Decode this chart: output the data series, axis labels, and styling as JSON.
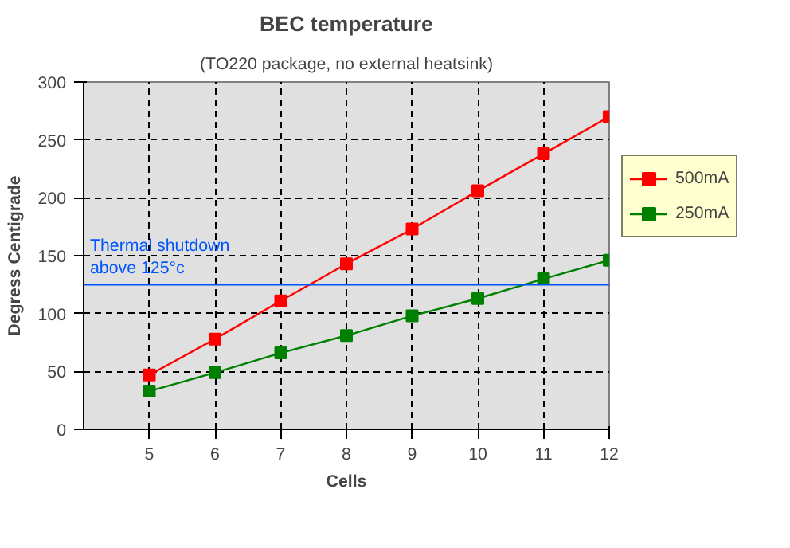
{
  "chart_data": {
    "type": "line",
    "title": "BEC temperature",
    "subtitle": "(TO220 package, no external heatsink)",
    "xlabel": "Cells",
    "ylabel": "Degress Centigrade",
    "x": [
      5,
      6,
      7,
      8,
      9,
      10,
      11,
      12
    ],
    "series": [
      {
        "name": "500mA",
        "color": "#ff0000",
        "values": [
          47,
          78,
          111,
          143,
          173,
          206,
          238,
          270
        ]
      },
      {
        "name": "250mA",
        "color": "#008000",
        "values": [
          33,
          49,
          66,
          81,
          98,
          113,
          130,
          146
        ]
      }
    ],
    "xlim": [
      4,
      12
    ],
    "xticks": [
      5,
      6,
      7,
      8,
      9,
      10,
      11,
      12
    ],
    "ylim": [
      0,
      300
    ],
    "yticks": [
      0,
      50,
      100,
      150,
      200,
      250,
      300
    ],
    "ref_lines": [
      {
        "axis": "y",
        "value": 125,
        "label": "Thermal shutdown\nabove 125°c",
        "color": "#0055ff"
      }
    ],
    "grid": true,
    "legend": "right",
    "marker": "square",
    "line_style": "solid"
  }
}
